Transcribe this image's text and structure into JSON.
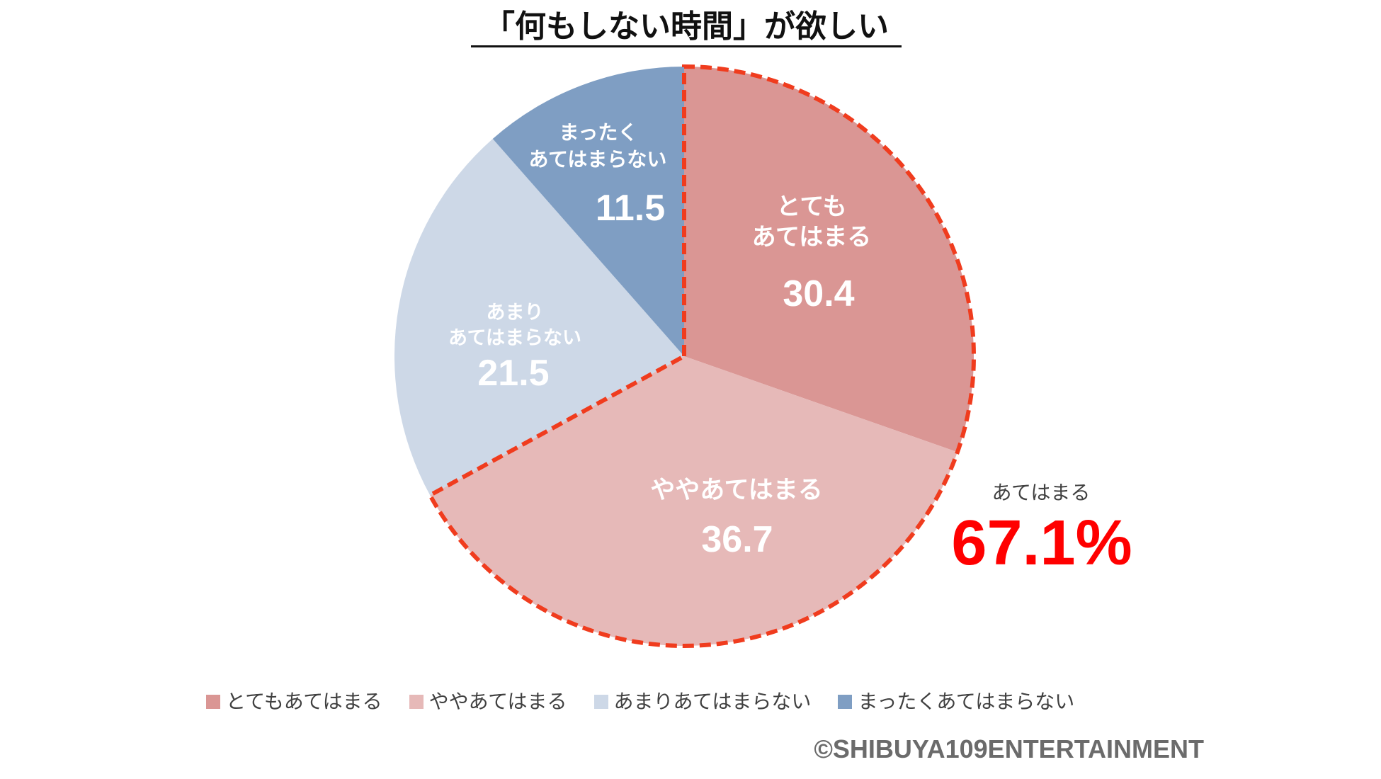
{
  "chart_data": {
    "type": "pie",
    "title": "「何もしない時間」が欲しい",
    "categories": [
      "とてもあてはまる",
      "ややあてはまる",
      "あまりあてはまらない",
      "まったくあてはまらない"
    ],
    "values": [
      30.4,
      36.7,
      21.5,
      11.5
    ],
    "slice_labels": [
      [
        "とても",
        "あてはまる"
      ],
      [
        "ややあてはまる"
      ],
      [
        "あまり",
        "あてはまらない"
      ],
      [
        "まったく",
        "あてはまらない"
      ]
    ],
    "colors": [
      "#DA9694",
      "#E6B9B8",
      "#CDD8E7",
      "#7F9EC3"
    ],
    "label_color": "#FFFFFF",
    "legend_position": "bottom",
    "highlight": {
      "slice_indices": [
        0,
        1
      ],
      "color": "#F03C1E",
      "label": "あてはまる",
      "value": "67.1%",
      "value_color": "#FF0000"
    }
  },
  "copyright": "©SHIBUYA109ENTERTAINMENT"
}
